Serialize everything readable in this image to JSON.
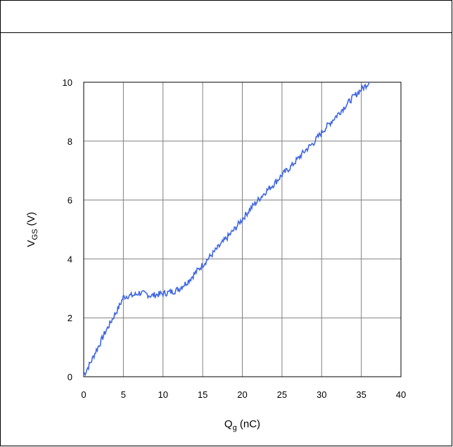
{
  "chart_data": {
    "type": "line",
    "title": "",
    "xlabel_main": "Q",
    "xlabel_sub": "g",
    "xlabel_rest": " (nC)",
    "ylabel_main": "V",
    "ylabel_sub": "GS",
    "ylabel_rest": " (V)",
    "xlim": [
      0,
      40
    ],
    "ylim": [
      0,
      10
    ],
    "xticks": [
      0,
      5,
      10,
      15,
      20,
      25,
      30,
      35,
      40
    ],
    "yticks": [
      0,
      2,
      4,
      6,
      8,
      10
    ],
    "grid": true,
    "line_color": "#3f67e0",
    "series": [
      {
        "x": [
          0,
          0.3,
          0.6,
          1,
          1.5,
          2,
          2.5,
          3,
          3.5,
          4,
          4.5,
          5,
          5.5,
          6,
          6.5,
          7,
          7.5,
          8,
          8.5,
          9,
          9.5,
          10,
          10.5,
          11,
          11.5,
          12,
          12.5,
          13,
          14,
          15,
          16,
          17,
          18,
          19,
          20,
          21,
          22,
          23,
          24,
          25,
          26,
          27,
          28,
          29,
          30,
          31,
          32,
          33,
          34,
          35,
          36
        ],
        "y": [
          0.05,
          0.2,
          0.35,
          0.55,
          0.85,
          1.1,
          1.4,
          1.65,
          1.9,
          2.15,
          2.4,
          2.7,
          2.75,
          2.75,
          2.78,
          2.85,
          2.82,
          2.8,
          2.75,
          2.78,
          2.8,
          2.82,
          2.85,
          2.88,
          2.92,
          2.98,
          3.1,
          3.2,
          3.5,
          3.8,
          4.1,
          4.4,
          4.7,
          5.0,
          5.35,
          5.7,
          6.0,
          6.3,
          6.55,
          6.85,
          7.1,
          7.4,
          7.7,
          7.95,
          8.3,
          8.6,
          8.9,
          9.2,
          9.5,
          9.75,
          10.0
        ]
      }
    ]
  }
}
